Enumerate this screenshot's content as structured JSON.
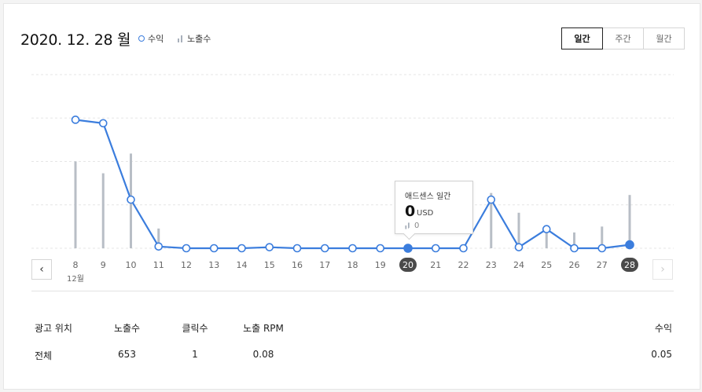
{
  "header": {
    "title": "2020. 12. 28 월",
    "legend": {
      "revenue": "수익",
      "impressions": "노출수"
    }
  },
  "periods": [
    {
      "label": "일간",
      "active": true
    },
    {
      "label": "주간",
      "active": false
    },
    {
      "label": "월간",
      "active": false
    }
  ],
  "colors": {
    "line": "#3b7ddd",
    "bar": "#b8bec6",
    "grid": "#e6e6e6",
    "selected_day": "#4a4a4a"
  },
  "chart_data": {
    "type": "line",
    "categories": [
      "8",
      "9",
      "10",
      "11",
      "12",
      "13",
      "14",
      "15",
      "16",
      "17",
      "18",
      "19",
      "20",
      "21",
      "22",
      "23",
      "24",
      "25",
      "26",
      "27",
      "28"
    ],
    "month_label": "12월",
    "series": [
      {
        "name": "수익",
        "kind": "line",
        "values": [
          0.37,
          0.36,
          0.14,
          0.005,
          0,
          0,
          0,
          0.003,
          0,
          0,
          0,
          0,
          0,
          0,
          0,
          0.14,
          0.003,
          0.055,
          0,
          0,
          0.01
        ]
      },
      {
        "name": "노출수",
        "kind": "bar",
        "values": [
          220,
          190,
          240,
          50,
          0,
          0,
          0,
          0,
          0,
          0,
          0,
          0,
          0,
          0,
          0,
          140,
          90,
          55,
          40,
          55,
          135
        ]
      }
    ],
    "highlighted": [
      "20",
      "28"
    ],
    "ylim_revenue": [
      0,
      0.5
    ],
    "ylim_impressions": [
      0,
      440
    ],
    "grid": true
  },
  "tooltip": {
    "title": "애드센스 일간",
    "value": "0",
    "unit": "USD",
    "impressions": "0"
  },
  "nav": {
    "prev": "‹",
    "next": "›"
  },
  "table": {
    "headers": {
      "position": "광고 위치",
      "impressions": "노출수",
      "clicks": "클릭수",
      "rpm": "노출 RPM",
      "revenue": "수익"
    },
    "row": {
      "position": "전체",
      "impressions": "653",
      "clicks": "1",
      "rpm": "0.08",
      "revenue": "0.05"
    }
  }
}
